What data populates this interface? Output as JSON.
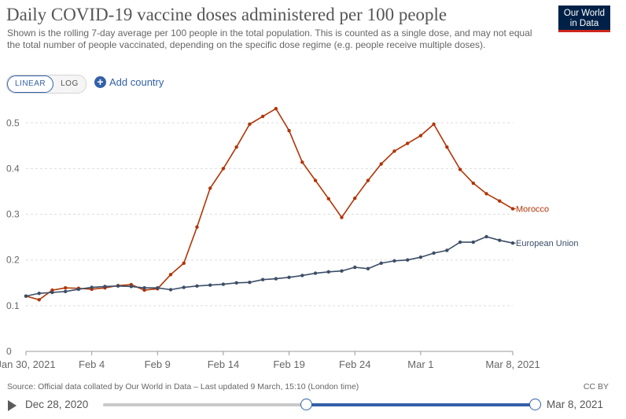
{
  "header": {
    "title": "Daily COVID-19 vaccine doses administered per 100 people",
    "subtitle": "Shown is the rolling 7-day average per 100 people in the total population. This is counted as a single dose, and may not equal the total number of people vaccinated, depending on the specific dose regime (e.g. people receive multiple doses).",
    "logo_line1": "Our World",
    "logo_line2": "in Data"
  },
  "controls": {
    "linear_label": "LINEAR",
    "log_label": "LOG",
    "scale_selected": "LINEAR",
    "add_country_label": "Add country"
  },
  "chart_data": {
    "type": "line",
    "x_start": "2021-01-30",
    "x_end": "2021-03-08",
    "x_tick_labels": [
      "Jan 30, 2021",
      "Feb 4",
      "Feb 9",
      "Feb 14",
      "Feb 19",
      "Feb 24",
      "Mar 1",
      "Mar 8, 2021"
    ],
    "y_ticks": [
      0,
      0.1,
      0.2,
      0.3,
      0.4,
      0.5
    ],
    "y_tick_labels": [
      "0",
      "0.1",
      "0.2",
      "0.3",
      "0.4",
      "0.5"
    ],
    "ylim": [
      0,
      0.54
    ],
    "grid": true,
    "series": [
      {
        "name": "Morocco",
        "color": "#b13507",
        "values": [
          0.121,
          0.113,
          0.134,
          0.139,
          0.138,
          0.136,
          0.139,
          0.144,
          0.146,
          0.134,
          0.137,
          0.168,
          0.193,
          0.272,
          0.357,
          0.4,
          0.447,
          0.497,
          0.514,
          0.531,
          0.483,
          0.414,
          0.374,
          0.334,
          0.293,
          0.335,
          0.374,
          0.41,
          0.438,
          0.455,
          0.472,
          0.497,
          0.447,
          0.398,
          0.368,
          0.345,
          0.329,
          0.312
        ]
      },
      {
        "name": "European Union",
        "color": "#3c4e66",
        "values": [
          0.121,
          0.127,
          0.129,
          0.131,
          0.136,
          0.14,
          0.142,
          0.143,
          0.142,
          0.139,
          0.139,
          0.135,
          0.14,
          0.143,
          0.145,
          0.147,
          0.15,
          0.151,
          0.157,
          0.159,
          0.162,
          0.166,
          0.171,
          0.174,
          0.176,
          0.184,
          0.181,
          0.193,
          0.198,
          0.2,
          0.206,
          0.215,
          0.221,
          0.239,
          0.239,
          0.251,
          0.243,
          0.237
        ]
      }
    ]
  },
  "footer": {
    "source": "Source: Official data collated by Our World in Data – Last updated 9 March, 15:10 (London time)",
    "license": "CC BY"
  },
  "timeline": {
    "start_label": "Dec 28, 2020",
    "end_label": "Mar 8, 2021",
    "range_start_fraction": 0.47,
    "range_end_fraction": 1.0
  }
}
